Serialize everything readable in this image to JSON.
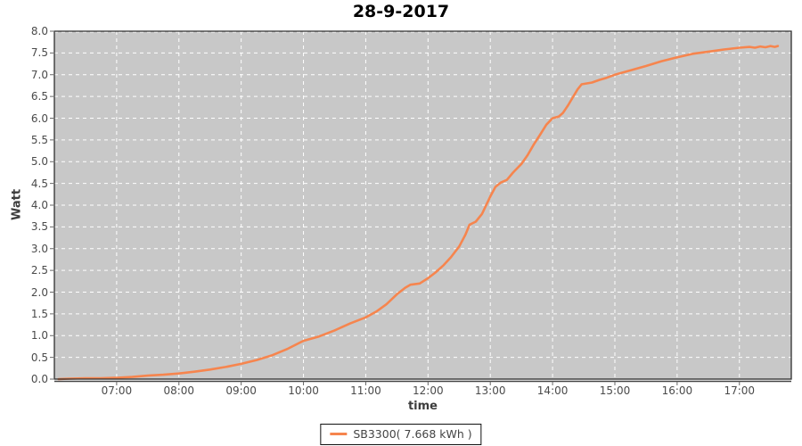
{
  "title": "28-9-2017",
  "axes": {
    "x_label": "time",
    "y_label": "Watt"
  },
  "legend": {
    "label": "SB3300( 7.668 kWh )"
  },
  "colors": {
    "series": "#F6854E",
    "plot_background": "#C8C8C8",
    "gridline": "#FFFFFF",
    "plot_border": "#2F2F2F",
    "axis_line": "#444444",
    "tick_text": "#4A4A4A",
    "title_text": "#000000"
  },
  "chart_data": {
    "type": "line",
    "title": "28-9-2017",
    "xlabel": "time",
    "ylabel": "Watt",
    "ylim": [
      0.0,
      8.0
    ],
    "y_tick_step": 0.5,
    "x_ticks": [
      "07:00",
      "08:00",
      "09:00",
      "10:00",
      "11:00",
      "12:00",
      "13:00",
      "14:00",
      "15:00",
      "16:00",
      "17:00"
    ],
    "x_range": [
      "06:00",
      "17:50"
    ],
    "grid": true,
    "grid_style": "white-dashed",
    "legend_position": "bottom-center",
    "series": [
      {
        "name": "SB3300( 7.668 kWh )",
        "color": "#F6854E",
        "total_kwh": 7.668,
        "points": [
          [
            "06:04",
            0.0
          ],
          [
            "06:15",
            0.01
          ],
          [
            "06:30",
            0.02
          ],
          [
            "06:45",
            0.02
          ],
          [
            "07:00",
            0.03
          ],
          [
            "07:15",
            0.05
          ],
          [
            "07:30",
            0.08
          ],
          [
            "07:45",
            0.1
          ],
          [
            "08:00",
            0.13
          ],
          [
            "08:15",
            0.17
          ],
          [
            "08:30",
            0.22
          ],
          [
            "08:45",
            0.28
          ],
          [
            "09:00",
            0.35
          ],
          [
            "09:15",
            0.44
          ],
          [
            "09:30",
            0.55
          ],
          [
            "09:45",
            0.7
          ],
          [
            "10:00",
            0.88
          ],
          [
            "10:15",
            0.98
          ],
          [
            "10:30",
            1.12
          ],
          [
            "10:45",
            1.28
          ],
          [
            "11:00",
            1.42
          ],
          [
            "11:10",
            1.55
          ],
          [
            "11:20",
            1.72
          ],
          [
            "11:30",
            1.95
          ],
          [
            "11:38",
            2.1
          ],
          [
            "11:43",
            2.17
          ],
          [
            "11:52",
            2.2
          ],
          [
            "12:00",
            2.32
          ],
          [
            "12:07",
            2.45
          ],
          [
            "12:15",
            2.62
          ],
          [
            "12:22",
            2.8
          ],
          [
            "12:30",
            3.05
          ],
          [
            "12:36",
            3.32
          ],
          [
            "12:40",
            3.55
          ],
          [
            "12:46",
            3.62
          ],
          [
            "12:52",
            3.8
          ],
          [
            "13:00",
            4.2
          ],
          [
            "13:05",
            4.42
          ],
          [
            "13:10",
            4.52
          ],
          [
            "13:16",
            4.58
          ],
          [
            "13:22",
            4.75
          ],
          [
            "13:30",
            4.95
          ],
          [
            "13:36",
            5.15
          ],
          [
            "13:42",
            5.4
          ],
          [
            "13:48",
            5.62
          ],
          [
            "13:54",
            5.85
          ],
          [
            "14:00",
            6.0
          ],
          [
            "14:06",
            6.04
          ],
          [
            "14:10",
            6.12
          ],
          [
            "14:15",
            6.3
          ],
          [
            "14:20",
            6.5
          ],
          [
            "14:24",
            6.66
          ],
          [
            "14:28",
            6.78
          ],
          [
            "14:38",
            6.82
          ],
          [
            "14:45",
            6.88
          ],
          [
            "14:52",
            6.93
          ],
          [
            "15:00",
            7.0
          ],
          [
            "15:15",
            7.1
          ],
          [
            "15:30",
            7.2
          ],
          [
            "15:45",
            7.31
          ],
          [
            "16:00",
            7.4
          ],
          [
            "16:15",
            7.48
          ],
          [
            "16:30",
            7.53
          ],
          [
            "16:45",
            7.58
          ],
          [
            "17:00",
            7.62
          ],
          [
            "17:10",
            7.64
          ],
          [
            "17:15",
            7.62
          ],
          [
            "17:20",
            7.65
          ],
          [
            "17:25",
            7.63
          ],
          [
            "17:30",
            7.66
          ],
          [
            "17:34",
            7.64
          ],
          [
            "17:37",
            7.66
          ]
        ]
      }
    ]
  }
}
